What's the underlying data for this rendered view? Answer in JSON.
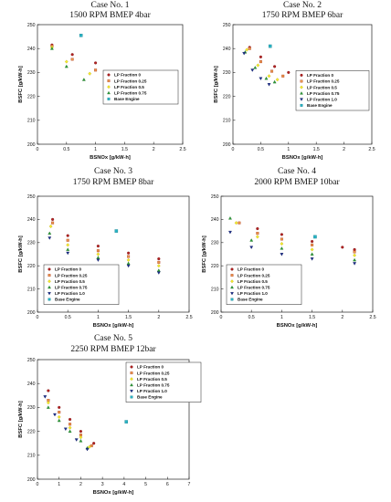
{
  "chart_data": [
    {
      "type": "scatter",
      "title": "Case No. 1",
      "subtitle": "1500 RPM BMEP 4bar",
      "xlabel": "BSNOx [g/kW-h]",
      "ylabel": "BSFC [g/kW-h]",
      "xlim": [
        0,
        2.5
      ],
      "ylim": [
        200,
        250
      ],
      "xticks": [
        "0",
        "0.5",
        "1",
        "1.5",
        "2",
        "2.5"
      ],
      "yticks": [
        "200",
        "210",
        "220",
        "230",
        "240",
        "250"
      ],
      "legend": "bottom-right",
      "series": [
        {
          "name": "LP Fraction 0",
          "points": [
            [
              0.25,
              241.5
            ],
            [
              0.6,
              237.5
            ],
            [
              1.0,
              234
            ],
            [
              1.5,
              229.5
            ],
            [
              2.0,
              226
            ]
          ]
        },
        {
          "name": "LP Fraction 0.25",
          "points": [
            [
              0.25,
              241
            ],
            [
              0.6,
              235.5
            ],
            [
              1.0,
              231
            ],
            [
              1.5,
              227.5
            ],
            [
              1.9,
              224.5
            ]
          ]
        },
        {
          "name": "LP Fraction 0.5",
          "points": [
            [
              0.25,
              240.5
            ],
            [
              0.5,
              234.5
            ],
            [
              0.9,
              229.5
            ],
            [
              1.3,
              226.5
            ],
            [
              1.8,
              223.5
            ]
          ]
        },
        {
          "name": "LP Fraction 0.75",
          "points": [
            [
              0.25,
              240
            ],
            [
              0.5,
              232.5
            ],
            [
              0.8,
              227
            ],
            [
              1.2,
              224
            ],
            [
              1.75,
              222.5
            ]
          ]
        },
        {
          "name": "Base Engine",
          "points": [
            [
              0.75,
              245.5
            ]
          ]
        }
      ]
    },
    {
      "type": "scatter",
      "title": "Case No. 2",
      "subtitle": "1750 RPM BMEP 6bar",
      "xlabel": "BSNOx [g/kW-h]",
      "ylabel": "BSFC [g/kW-h]",
      "xlim": [
        0,
        2.5
      ],
      "ylim": [
        200,
        250
      ],
      "xticks": [
        "0",
        "0.5",
        "1",
        "1.5",
        "2",
        "2.5"
      ],
      "yticks": [
        "200",
        "210",
        "220",
        "230",
        "240",
        "250"
      ],
      "legend": "bottom-right",
      "series": [
        {
          "name": "LP Fraction 0",
          "points": [
            [
              0.3,
              240.5
            ],
            [
              0.5,
              236.5
            ],
            [
              0.75,
              232.5
            ],
            [
              1.0,
              230
            ]
          ]
        },
        {
          "name": "LP Fraction 0.25",
          "points": [
            [
              0.3,
              240
            ],
            [
              0.5,
              234.5
            ],
            [
              0.7,
              230.5
            ],
            [
              0.9,
              228.5
            ]
          ]
        },
        {
          "name": "LP Fraction 0.5",
          "points": [
            [
              0.25,
              239.5
            ],
            [
              0.45,
              233
            ],
            [
              0.65,
              228.5
            ],
            [
              0.8,
              227
            ]
          ]
        },
        {
          "name": "LP Fraction 0.75",
          "points": [
            [
              0.22,
              238.5
            ],
            [
              0.4,
              232
            ],
            [
              0.6,
              227.5
            ],
            [
              0.75,
              226
            ]
          ]
        },
        {
          "name": "LP Fraction 1.0",
          "points": [
            [
              0.2,
              238
            ],
            [
              0.35,
              231
            ],
            [
              0.5,
              227.5
            ],
            [
              0.65,
              225
            ]
          ]
        },
        {
          "name": "Base Engine",
          "points": [
            [
              0.67,
              241
            ]
          ]
        }
      ]
    },
    {
      "type": "scatter",
      "title": "Case No. 3",
      "subtitle": "1750 RPM BMEP 8bar",
      "xlabel": "BSNOx [g/kW-h]",
      "ylabel": "BSFC [g/kW-h]",
      "xlim": [
        0,
        2.5
      ],
      "ylim": [
        200,
        250
      ],
      "xticks": [
        "0",
        "0.5",
        "1",
        "1.5",
        "2",
        "2.5"
      ],
      "yticks": [
        "200",
        "210",
        "220",
        "230",
        "240",
        "250"
      ],
      "legend": "bottom-left",
      "series": [
        {
          "name": "LP Fraction 0",
          "points": [
            [
              0.25,
              240
            ],
            [
              0.5,
              233
            ],
            [
              1.0,
              228.5
            ],
            [
              1.5,
              225.5
            ],
            [
              2.0,
              223
            ]
          ]
        },
        {
          "name": "LP Fraction 0.25",
          "points": [
            [
              0.25,
              238.5
            ],
            [
              0.5,
              231
            ],
            [
              1.0,
              226.5
            ],
            [
              1.5,
              224
            ],
            [
              2.0,
              221.5
            ]
          ]
        },
        {
          "name": "LP Fraction 0.5",
          "points": [
            [
              0.22,
              237
            ],
            [
              0.5,
              229
            ],
            [
              1.0,
              225
            ],
            [
              1.5,
              222.5
            ],
            [
              2.0,
              220
            ]
          ]
        },
        {
          "name": "LP Fraction 0.75",
          "points": [
            [
              0.2,
              234
            ],
            [
              0.5,
              227
            ],
            [
              1.0,
              223.5
            ],
            [
              1.5,
              221
            ],
            [
              2.0,
              218
            ]
          ]
        },
        {
          "name": "LP Fraction 1.0",
          "points": [
            [
              0.2,
              232
            ],
            [
              0.5,
              225.5
            ],
            [
              1.0,
              222.5
            ],
            [
              1.5,
              220
            ],
            [
              2.0,
              217
            ]
          ]
        },
        {
          "name": "Base Engine",
          "points": [
            [
              1.3,
              235
            ]
          ]
        }
      ]
    },
    {
      "type": "scatter",
      "title": "Case No. 4",
      "subtitle": "2000 RPM BMEP 10bar",
      "xlabel": "BSNOx [g/kW-h]",
      "ylabel": "BSFC [g/kW-h]",
      "xlim": [
        0,
        2.5
      ],
      "ylim": [
        200,
        250
      ],
      "xticks": [
        "0",
        "0.5",
        "1",
        "1.5",
        "2",
        "2.5"
      ],
      "yticks": [
        "200",
        "210",
        "220",
        "230",
        "240",
        "250"
      ],
      "legend": "bottom-left",
      "series": [
        {
          "name": "LP Fraction 0",
          "points": [
            [
              0.6,
              236
            ],
            [
              1.0,
              233.5
            ],
            [
              1.5,
              230.5
            ],
            [
              2.0,
              228
            ],
            [
              2.2,
              227
            ]
          ]
        },
        {
          "name": "LP Fraction 0.25",
          "points": [
            [
              0.3,
              238.5
            ],
            [
              0.6,
              234
            ],
            [
              1.0,
              231.5
            ],
            [
              1.5,
              229
            ],
            [
              2.2,
              226
            ]
          ]
        },
        {
          "name": "LP Fraction 0.5",
          "points": [
            [
              0.25,
              238.5
            ],
            [
              0.6,
              232.5
            ],
            [
              1.0,
              229.5
            ],
            [
              1.5,
              227
            ],
            [
              2.2,
              224.5
            ]
          ]
        },
        {
          "name": "LP Fraction 0.75",
          "points": [
            [
              0.15,
              240.5
            ],
            [
              0.5,
              231
            ],
            [
              1.0,
              227.5
            ],
            [
              1.5,
              225
            ],
            [
              2.2,
              222.5
            ]
          ]
        },
        {
          "name": "LP Fraction 1.0",
          "points": [
            [
              0.15,
              234.5
            ],
            [
              0.5,
              228
            ],
            [
              1.0,
              225
            ],
            [
              1.5,
              223
            ],
            [
              2.2,
              221
            ]
          ]
        },
        {
          "name": "Base Engine",
          "points": [
            [
              1.55,
              232.5
            ]
          ]
        }
      ]
    },
    {
      "type": "scatter",
      "title": "Case No. 5",
      "subtitle": "2250 RPM BMEP 12bar",
      "xlabel": "BSNOx [g/kW-h]",
      "ylabel": "BSFC [g/kW-h]",
      "xlim": [
        0,
        7
      ],
      "ylim": [
        200,
        250
      ],
      "xticks": [
        "0",
        "1",
        "2",
        "3",
        "4",
        "5",
        "6",
        "7"
      ],
      "yticks": [
        "200",
        "210",
        "220",
        "230",
        "240",
        "250"
      ],
      "legend": "top-right",
      "series": [
        {
          "name": "LP Fraction 0",
          "points": [
            [
              0.5,
              237
            ],
            [
              1.0,
              230
            ],
            [
              1.5,
              225
            ],
            [
              2.0,
              220
            ],
            [
              2.6,
              215
            ]
          ]
        },
        {
          "name": "LP Fraction 0.25",
          "points": [
            [
              0.5,
              233
            ],
            [
              1.0,
              228
            ],
            [
              1.5,
              223
            ],
            [
              2.0,
              218.5
            ],
            [
              2.5,
              214
            ]
          ]
        },
        {
          "name": "LP Fraction 0.5",
          "points": [
            [
              0.5,
              232
            ],
            [
              1.0,
              226
            ],
            [
              1.5,
              221.5
            ],
            [
              2.0,
              217.5
            ],
            [
              2.4,
              213.5
            ]
          ]
        },
        {
          "name": "LP Fraction 0.75",
          "points": [
            [
              0.5,
              230
            ],
            [
              1.0,
              224.5
            ],
            [
              1.5,
              220
            ],
            [
              2.0,
              216
            ],
            [
              2.3,
              213
            ]
          ]
        },
        {
          "name": "LP Fraction 1.0",
          "points": [
            [
              0.35,
              234.5
            ],
            [
              0.8,
              227
            ],
            [
              1.3,
              221
            ],
            [
              1.8,
              216.5
            ],
            [
              2.3,
              212.5
            ]
          ]
        },
        {
          "name": "Base Engine",
          "points": [
            [
              4.1,
              224
            ]
          ]
        }
      ]
    }
  ],
  "styles": {
    "LP Fraction 0": {
      "shape": "circle",
      "fill": "#b22222",
      "stroke": "#7a1212"
    },
    "LP Fraction 0.25": {
      "shape": "square",
      "fill": "#e8954a",
      "stroke": "#b03a1e"
    },
    "LP Fraction 0.5": {
      "shape": "diamond",
      "fill": "#f4ee2a",
      "stroke": "#b89a10"
    },
    "LP Fraction 0.75": {
      "shape": "triangle-up",
      "fill": "#2e9e3a",
      "stroke": "#1d6b25"
    },
    "LP Fraction 1.0": {
      "shape": "triangle-down",
      "fill": "#1c2f8e",
      "stroke": "#0f1a5a"
    },
    "Base Engine": {
      "shape": "square",
      "fill": "#28b3c4",
      "stroke": "#1a7f8c"
    }
  }
}
